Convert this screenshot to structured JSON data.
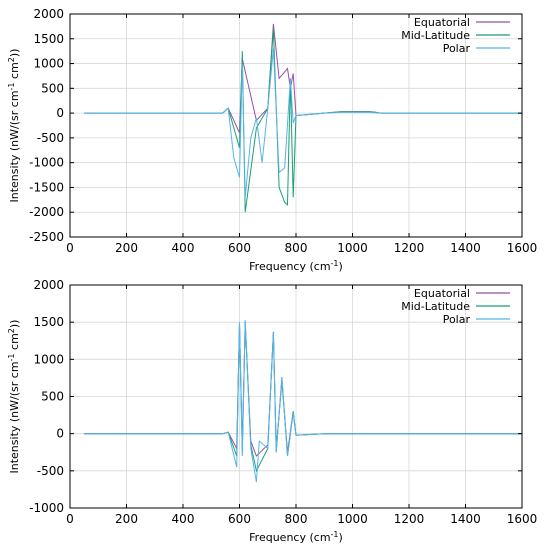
{
  "chart_data": [
    {
      "type": "line",
      "xlabel": "Frequency (cm",
      "xlabel_sup": "-1",
      "xlabel_end": ")",
      "ylabel_parts": [
        "Intensity (nW/(sr cm",
        "-1",
        " cm",
        "2",
        "))"
      ],
      "xlim": [
        0,
        1600
      ],
      "ylim": [
        -2500,
        2000
      ],
      "xticks": [
        0,
        200,
        400,
        600,
        800,
        1000,
        1200,
        1400,
        1600
      ],
      "yticks": [
        -2500,
        -2000,
        -1500,
        -1000,
        -500,
        0,
        500,
        1000,
        1500,
        2000
      ],
      "grid": true,
      "legend_position": "top-right",
      "series": [
        {
          "name": "Equatorial",
          "color": "#9b4fa5",
          "x": [
            50,
            540,
            560,
            600,
            610,
            660,
            700,
            720,
            740,
            770,
            780,
            790,
            800,
            900,
            940,
            960,
            1060,
            1080,
            1100,
            1600
          ],
          "y": [
            0,
            0,
            100,
            -400,
            1100,
            -150,
            100,
            1800,
            700,
            900,
            500,
            800,
            -50,
            0,
            20,
            30,
            30,
            20,
            0,
            0
          ]
        },
        {
          "name": "Mid-Latitude",
          "color": "#1a9e77",
          "x": [
            50,
            540,
            560,
            600,
            610,
            620,
            660,
            700,
            720,
            740,
            760,
            770,
            780,
            790,
            800,
            900,
            940,
            960,
            1060,
            1080,
            1100,
            1600
          ],
          "y": [
            0,
            0,
            100,
            -700,
            1250,
            -2000,
            -300,
            100,
            1700,
            -1500,
            -1800,
            -1850,
            700,
            -1700,
            -50,
            0,
            20,
            25,
            25,
            15,
            0,
            0
          ]
        },
        {
          "name": "Polar",
          "color": "#56b4e9",
          "x": [
            50,
            540,
            560,
            580,
            600,
            610,
            620,
            640,
            660,
            680,
            700,
            720,
            740,
            760,
            780,
            790,
            800,
            900,
            960,
            1060,
            1100,
            1600
          ],
          "y": [
            0,
            0,
            100,
            -900,
            -1300,
            1000,
            -1700,
            -500,
            -100,
            -1000,
            100,
            1300,
            -1200,
            -1100,
            700,
            -200,
            -50,
            0,
            15,
            15,
            0,
            0
          ]
        }
      ]
    },
    {
      "type": "line",
      "xlabel": "Frequency (cm",
      "xlabel_sup": "-1",
      "xlabel_end": ")",
      "ylabel_parts": [
        "Intensity (nW/(sr cm",
        "-1",
        " cm",
        "2",
        "))"
      ],
      "xlim": [
        0,
        1600
      ],
      "ylim": [
        -1000,
        2000
      ],
      "xticks": [
        0,
        200,
        400,
        600,
        800,
        1000,
        1200,
        1400,
        1600
      ],
      "yticks": [
        -1000,
        -500,
        0,
        500,
        1000,
        1500,
        2000
      ],
      "grid": true,
      "legend_position": "top-right",
      "series": [
        {
          "name": "Equatorial",
          "color": "#9b4fa5",
          "x": [
            50,
            540,
            560,
            590,
            600,
            610,
            620,
            640,
            660,
            700,
            720,
            730,
            750,
            770,
            790,
            800,
            900,
            1100,
            1600
          ],
          "y": [
            0,
            0,
            20,
            -200,
            1450,
            -150,
            1500,
            -100,
            -300,
            -150,
            1350,
            -200,
            700,
            -250,
            300,
            -20,
            0,
            0,
            0
          ]
        },
        {
          "name": "Mid-Latitude",
          "color": "#1a9e77",
          "x": [
            50,
            540,
            560,
            590,
            600,
            610,
            620,
            640,
            660,
            700,
            720,
            730,
            750,
            770,
            790,
            800,
            900,
            1100,
            1600
          ],
          "y": [
            0,
            0,
            20,
            -300,
            1500,
            -250,
            1500,
            -150,
            -500,
            -200,
            1370,
            -250,
            760,
            -300,
            300,
            -20,
            0,
            0,
            0
          ]
        },
        {
          "name": "Polar",
          "color": "#56b4e9",
          "x": [
            50,
            540,
            560,
            590,
            600,
            610,
            620,
            640,
            660,
            670,
            700,
            720,
            730,
            750,
            770,
            790,
            800,
            900,
            1100,
            1600
          ],
          "y": [
            0,
            0,
            20,
            -450,
            1500,
            -300,
            1530,
            -200,
            -650,
            -100,
            -200,
            1360,
            -250,
            750,
            -300,
            280,
            -20,
            0,
            0,
            0
          ]
        }
      ]
    }
  ]
}
